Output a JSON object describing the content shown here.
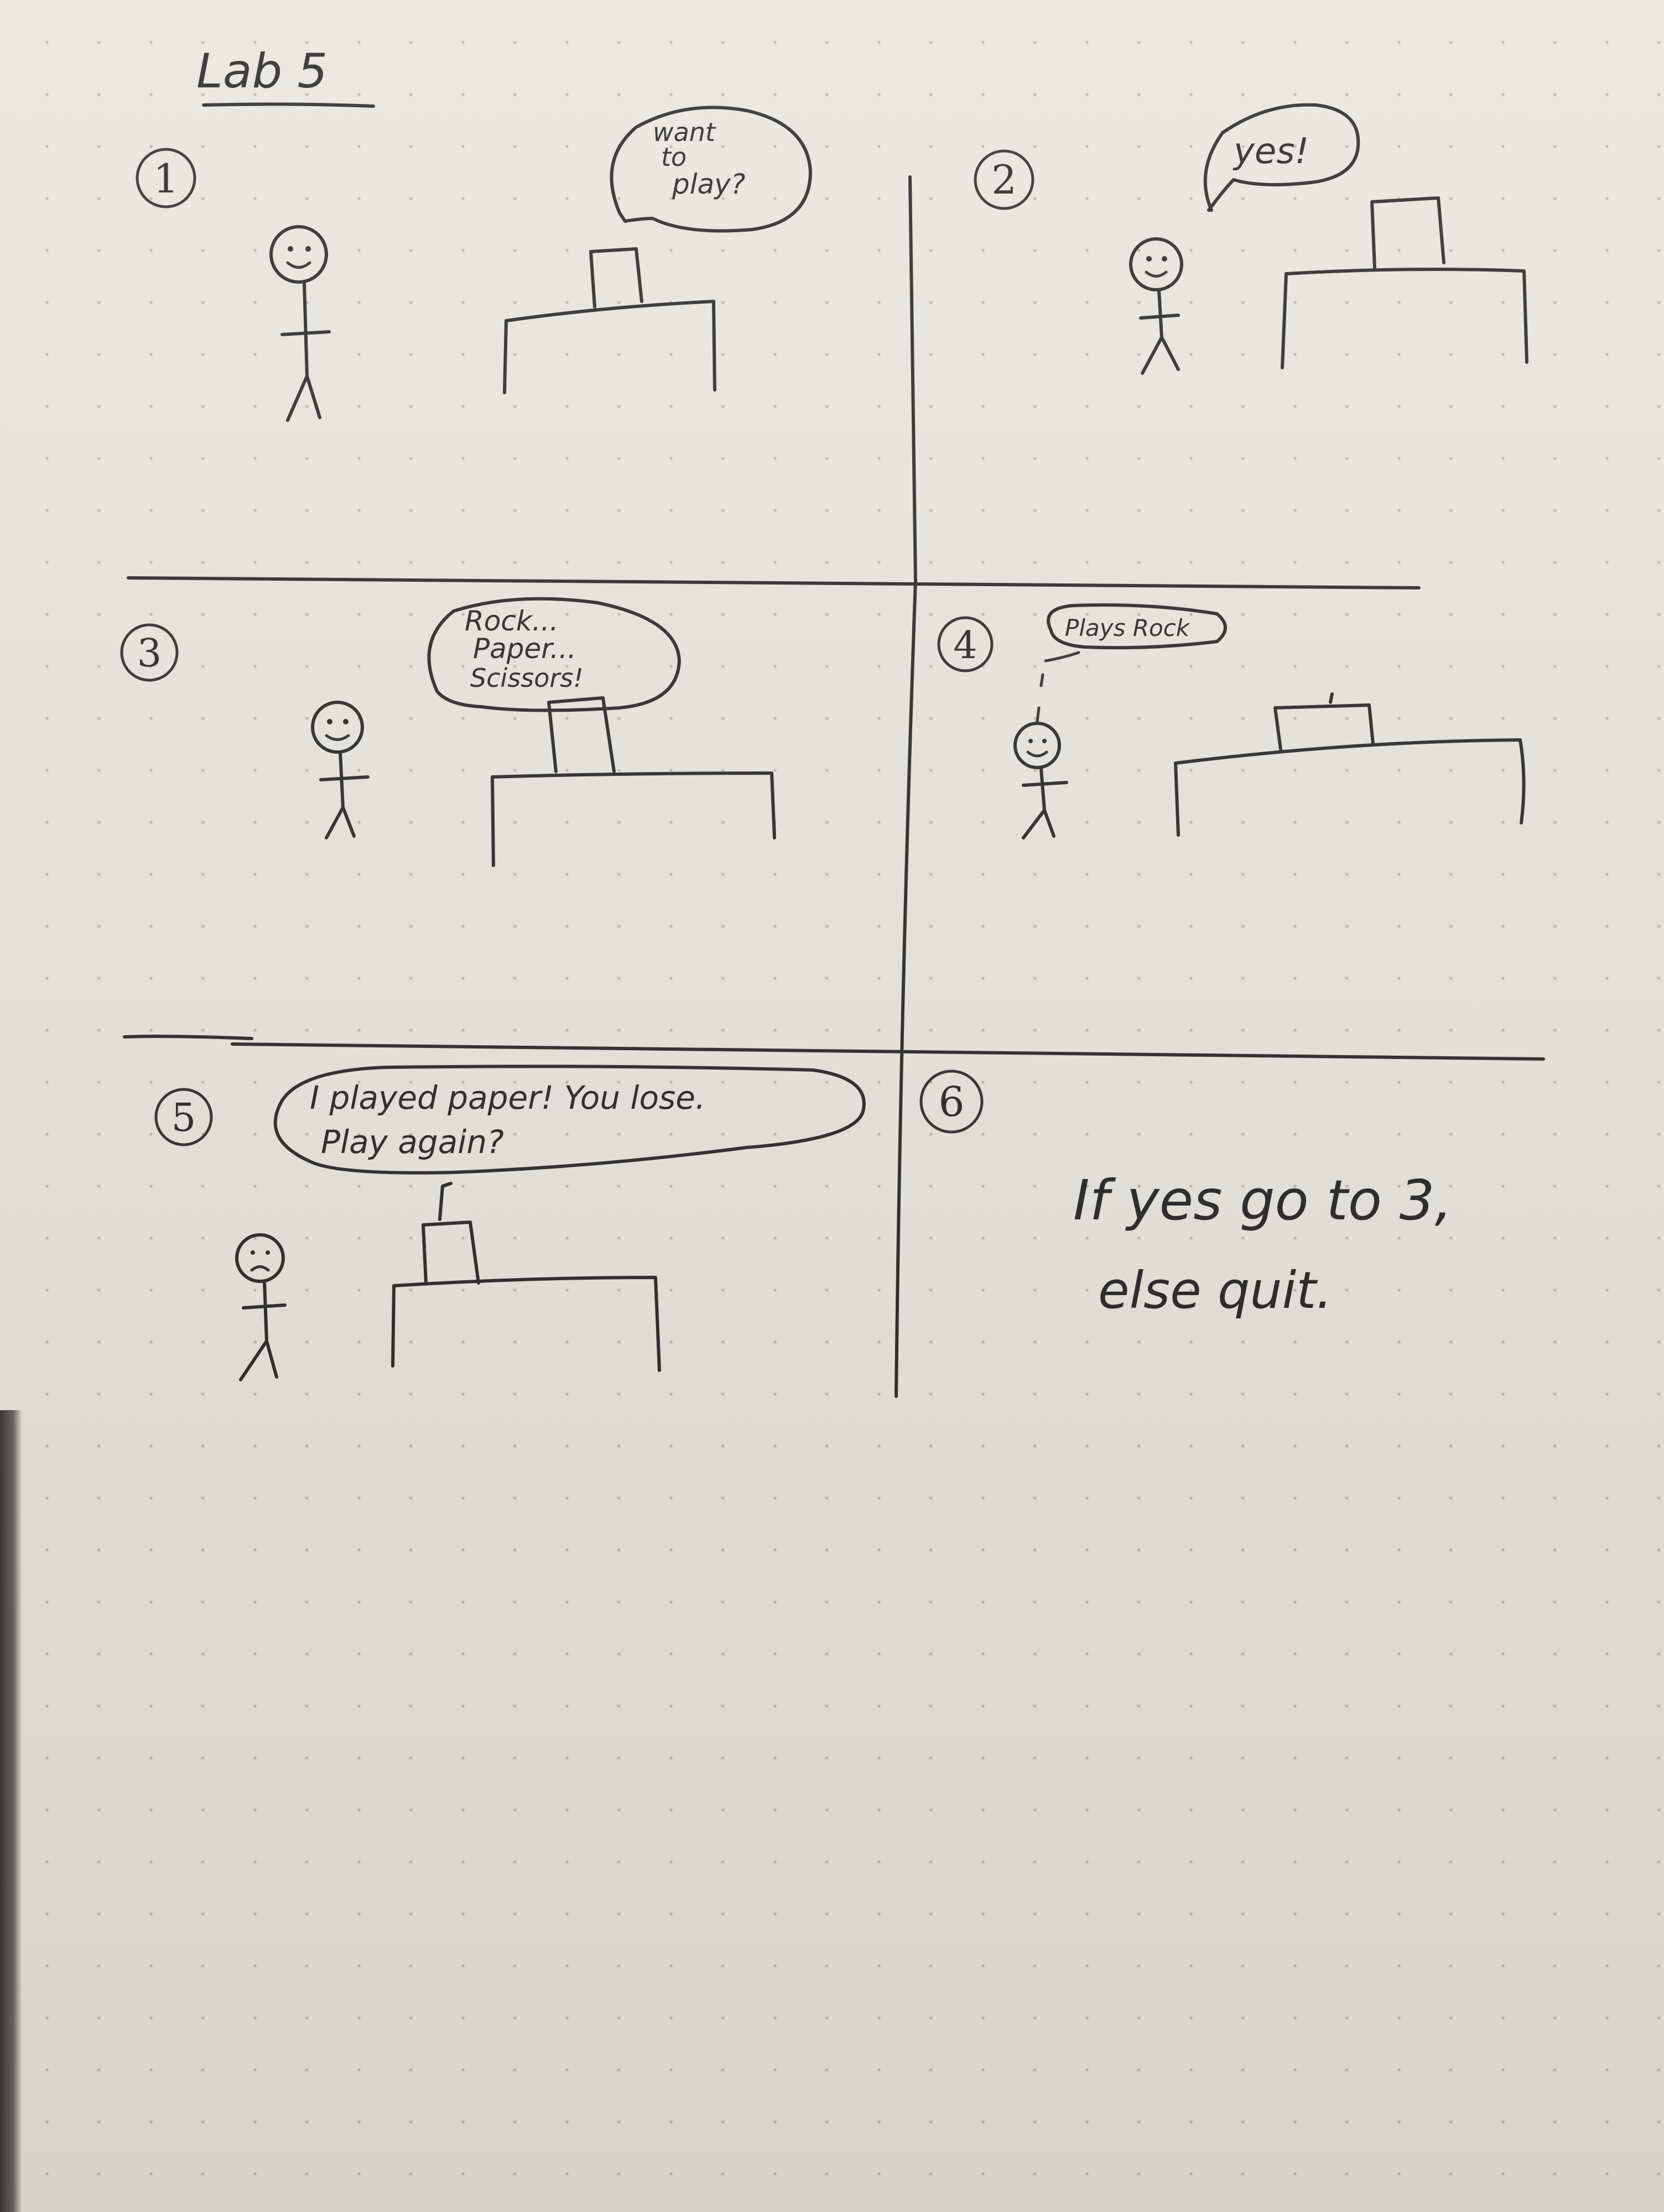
{
  "title": "Lab 5",
  "panels": [
    {
      "number": "1",
      "speech": [
        "want",
        "to",
        "play?"
      ]
    },
    {
      "number": "2",
      "speech": [
        "yes!"
      ]
    },
    {
      "number": "3",
      "speech": [
        "Rock...",
        "Paper...",
        "Scissors!"
      ]
    },
    {
      "number": "4",
      "speech": [
        "Plays Rock"
      ]
    },
    {
      "number": "5",
      "speech": [
        "I played paper! You lose.",
        "Play again?"
      ]
    },
    {
      "number": "6",
      "note": [
        "If yes go to 3,",
        "else quit."
      ]
    }
  ]
}
